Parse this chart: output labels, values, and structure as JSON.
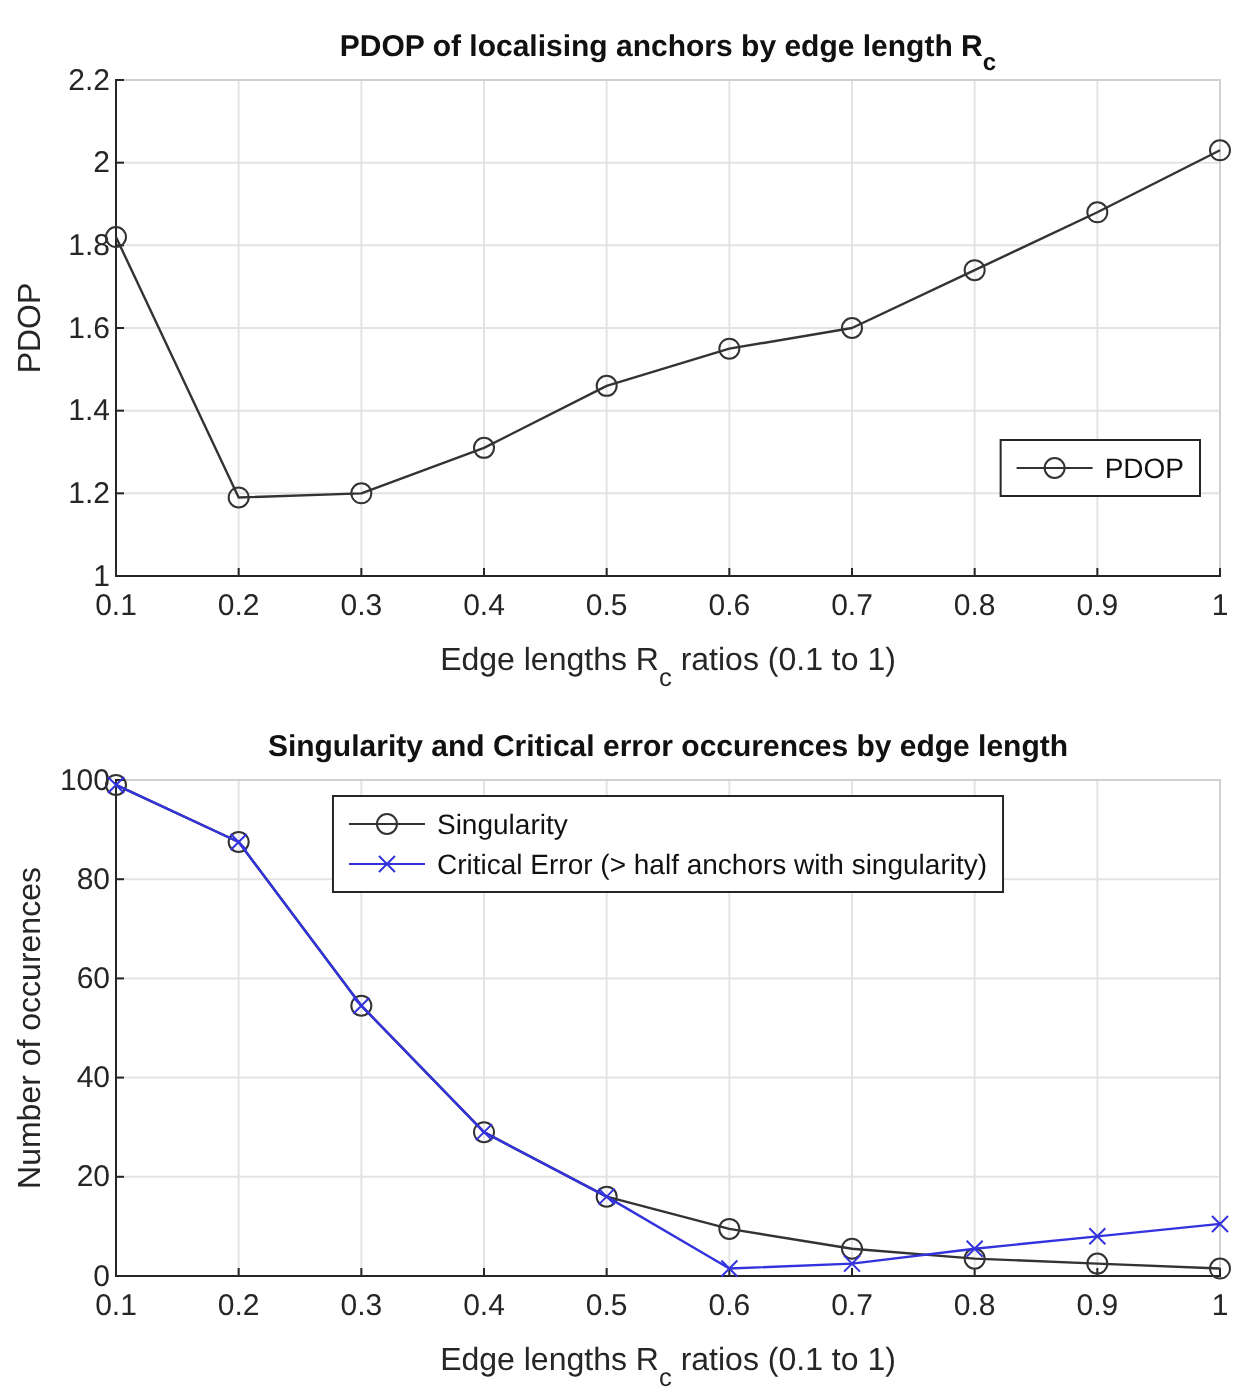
{
  "chart_data": [
    {
      "type": "line",
      "title": "PDOP of localising anchors by edge length R$_{c}$",
      "xlabel": "Edge lengths R$_{c}$ ratios (0.1 to 1)",
      "ylabel": "PDOP",
      "x": [
        0.1,
        0.2,
        0.3,
        0.4,
        0.5,
        0.6,
        0.7,
        0.8,
        0.9,
        1
      ],
      "series": [
        {
          "name": "PDOP",
          "color": "#333333",
          "marker": "circle",
          "values": [
            1.82,
            1.19,
            1.2,
            1.31,
            1.46,
            1.55,
            1.6,
            1.74,
            1.88,
            2.03
          ]
        }
      ],
      "xlim": [
        0.1,
        1
      ],
      "xticks": [
        0.1,
        0.2,
        0.3,
        0.4,
        0.5,
        0.6,
        0.7,
        0.8,
        0.9,
        1
      ],
      "ylim": [
        1,
        2.2
      ],
      "yticks": [
        1,
        1.2,
        1.4,
        1.6,
        1.8,
        2,
        2.2
      ],
      "grid": true,
      "legend": "bottom right",
      "line_style": "solid"
    },
    {
      "type": "line",
      "title": "Singularity and Critical error occurences by edge length",
      "xlabel": "Edge lengths R$_{c}$ ratios (0.1 to 1)",
      "ylabel": "Number of occurences",
      "x": [
        0.1,
        0.2,
        0.3,
        0.4,
        0.5,
        0.6,
        0.7,
        0.8,
        0.9,
        1
      ],
      "series": [
        {
          "name": "Singularity",
          "color": "#333333",
          "marker": "circle",
          "values": [
            99,
            87.5,
            54.5,
            29,
            16,
            9.5,
            5.5,
            3.5,
            2.5,
            1.5
          ]
        },
        {
          "name": "Critical Error (> half anchors with singularity)",
          "color": "#3333dd",
          "marker": "cross",
          "values": [
            99,
            87.5,
            54.5,
            29,
            16,
            1.5,
            2.5,
            5.5,
            8,
            10.5
          ]
        }
      ],
      "xlim": [
        0.1,
        1
      ],
      "xticks": [
        0.1,
        0.2,
        0.3,
        0.4,
        0.5,
        0.6,
        0.7,
        0.8,
        0.9,
        1
      ],
      "ylim": [
        0,
        100
      ],
      "yticks": [
        0,
        20,
        40,
        60,
        80,
        100
      ],
      "grid": true,
      "legend": "top",
      "line_style": "solid"
    }
  ]
}
